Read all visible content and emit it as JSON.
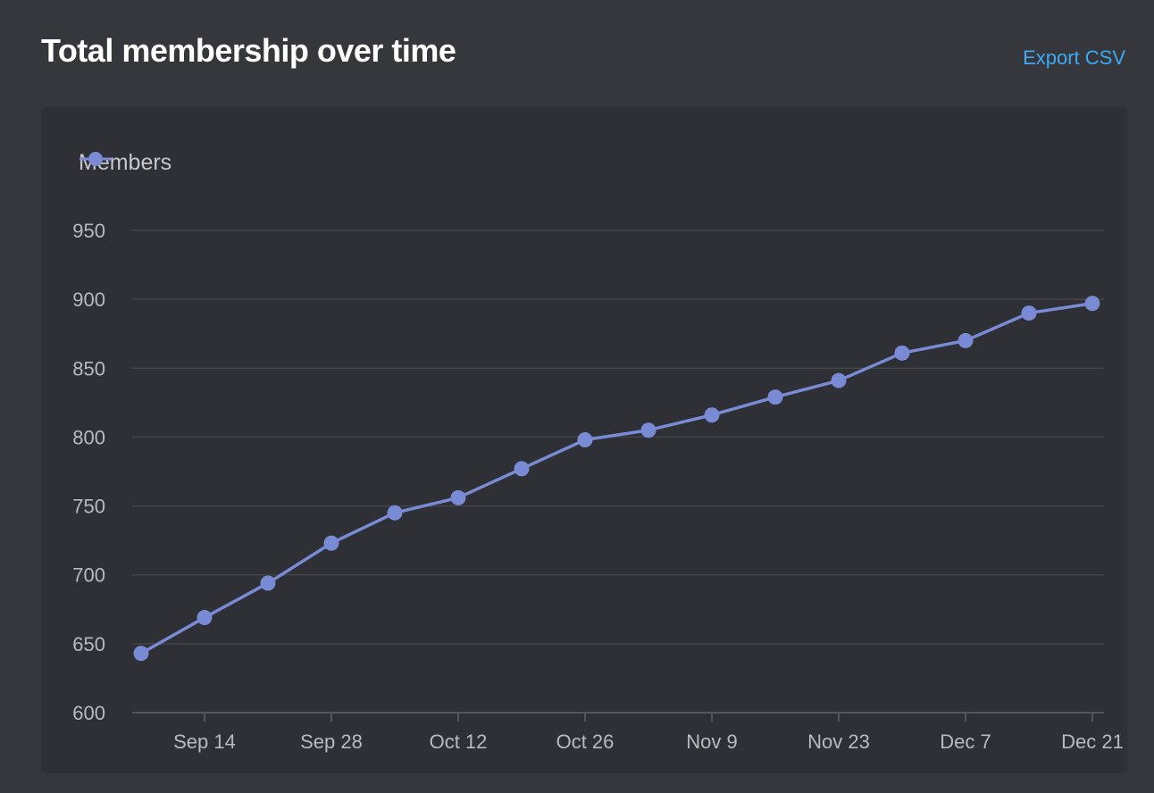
{
  "header": {
    "title": "Total membership over time",
    "export_label": "Export CSV"
  },
  "colors": {
    "series": "#7a8bd6",
    "grid": "#43444b",
    "axis": "#55565d",
    "link": "#3ea9f2"
  },
  "chart_data": {
    "type": "line",
    "title": "Total membership over time",
    "xlabel": "",
    "ylabel": "",
    "ylim": [
      600,
      950
    ],
    "yticks": [
      600,
      650,
      700,
      750,
      800,
      850,
      900,
      950
    ],
    "x_tick_labels": [
      "Sep 14",
      "Sep 28",
      "Oct 12",
      "Oct 26",
      "Nov 9",
      "Nov 23",
      "Dec 7",
      "Dec 21"
    ],
    "grid": true,
    "legend": "top-left",
    "series": [
      {
        "name": "Members",
        "x": [
          "Sep 7",
          "Sep 14",
          "Sep 21",
          "Sep 28",
          "Oct 5",
          "Oct 12",
          "Oct 19",
          "Oct 26",
          "Nov 2",
          "Nov 9",
          "Nov 16",
          "Nov 23",
          "Nov 30",
          "Dec 7",
          "Dec 14",
          "Dec 21"
        ],
        "values": [
          643,
          669,
          694,
          723,
          745,
          756,
          777,
          798,
          805,
          816,
          829,
          841,
          861,
          870,
          890,
          897
        ]
      }
    ]
  }
}
